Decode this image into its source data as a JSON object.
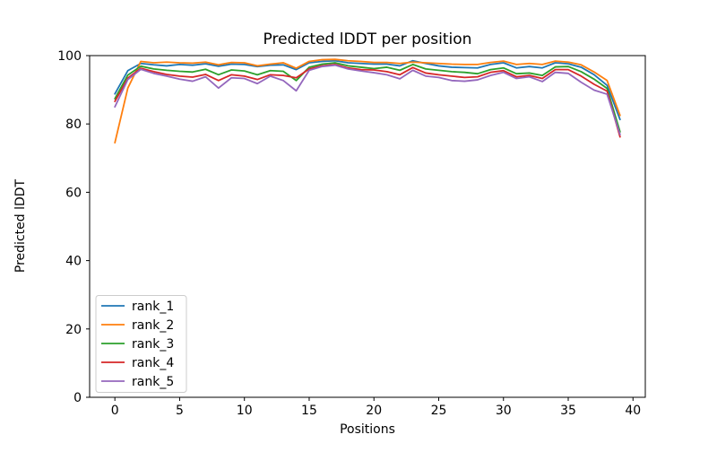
{
  "figure": {
    "background": "#ffffff",
    "text_color": "#000000",
    "spine_color": "#000000",
    "legend_border_color": "#cccccc"
  },
  "chart_data": {
    "type": "line",
    "title": "Predicted lDDT per position",
    "xlabel": "Positions",
    "ylabel": "Predicted lDDT",
    "xlim": [
      -1.95,
      40.95
    ],
    "ylim": [
      0,
      100
    ],
    "x_ticks": [
      0,
      5,
      10,
      15,
      20,
      25,
      30,
      35,
      40
    ],
    "y_ticks": [
      0,
      20,
      40,
      60,
      80,
      100
    ],
    "grid": false,
    "legend_position": "lower left",
    "x": [
      0,
      1,
      2,
      3,
      4,
      5,
      6,
      7,
      8,
      9,
      10,
      11,
      12,
      13,
      14,
      15,
      16,
      17,
      18,
      19,
      20,
      21,
      22,
      23,
      24,
      25,
      26,
      27,
      28,
      29,
      30,
      31,
      32,
      33,
      34,
      35,
      36,
      37,
      38,
      39
    ],
    "series": [
      {
        "name": "rank_1",
        "color": "#1f77b4",
        "values": [
          88.8,
          95.6,
          97.7,
          97.3,
          97.0,
          97.4,
          97.2,
          97.6,
          96.9,
          97.5,
          97.4,
          96.8,
          97.2,
          97.3,
          95.9,
          97.9,
          98.3,
          98.5,
          97.9,
          97.7,
          97.5,
          97.5,
          97.0,
          98.5,
          97.7,
          97.0,
          96.6,
          96.5,
          96.4,
          97.4,
          97.9,
          96.4,
          96.8,
          96.4,
          97.9,
          97.6,
          96.6,
          94.4,
          91.3,
          81.3
        ]
      },
      {
        "name": "rank_2",
        "color": "#ff7f0e",
        "values": [
          74.5,
          90.5,
          98.3,
          97.9,
          98.1,
          97.9,
          97.8,
          98.1,
          97.3,
          98.0,
          97.9,
          97.0,
          97.5,
          97.9,
          96.3,
          98.3,
          98.8,
          98.9,
          98.5,
          98.3,
          98.0,
          98.0,
          97.7,
          98.1,
          97.9,
          97.7,
          97.5,
          97.4,
          97.4,
          98.0,
          98.4,
          97.4,
          97.7,
          97.4,
          98.4,
          98.1,
          97.3,
          95.2,
          92.7,
          82.5
        ]
      },
      {
        "name": "rank_3",
        "color": "#2ca02c",
        "values": [
          87.4,
          94.3,
          96.9,
          96.1,
          95.7,
          95.4,
          95.2,
          96.0,
          94.4,
          95.8,
          95.5,
          94.4,
          95.6,
          95.4,
          92.7,
          96.6,
          97.5,
          97.9,
          97.0,
          96.6,
          96.2,
          96.6,
          95.7,
          97.4,
          96.1,
          95.7,
          95.3,
          95.1,
          94.7,
          95.9,
          96.4,
          94.7,
          94.9,
          94.2,
          96.7,
          96.8,
          95.3,
          93.1,
          90.4,
          77.7
        ]
      },
      {
        "name": "rank_4",
        "color": "#d62728",
        "values": [
          86.6,
          93.4,
          96.3,
          95.3,
          94.5,
          94.0,
          93.7,
          94.5,
          92.7,
          94.4,
          94.0,
          93.0,
          94.4,
          94.2,
          93.5,
          96.1,
          97.0,
          97.4,
          96.4,
          95.9,
          95.8,
          95.3,
          94.4,
          96.5,
          94.9,
          94.4,
          94.0,
          93.6,
          93.8,
          95.1,
          95.6,
          93.8,
          94.2,
          93.3,
          95.9,
          95.9,
          94.0,
          91.6,
          89.6,
          76.2
        ]
      },
      {
        "name": "rank_5",
        "color": "#9467bd",
        "values": [
          85.0,
          93.0,
          96.0,
          94.8,
          94.0,
          93.1,
          92.5,
          93.8,
          90.5,
          93.5,
          93.3,
          91.8,
          94.0,
          92.7,
          89.7,
          95.7,
          96.8,
          97.2,
          96.1,
          95.5,
          95.0,
          94.4,
          93.2,
          95.7,
          94.0,
          93.6,
          92.7,
          92.5,
          92.9,
          94.2,
          95.1,
          93.3,
          93.8,
          92.4,
          95.1,
          94.8,
          92.2,
          89.9,
          88.7,
          76.9
        ]
      }
    ]
  }
}
